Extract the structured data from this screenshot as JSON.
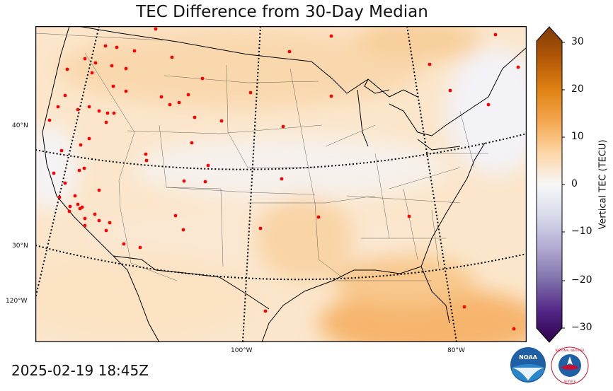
{
  "title": "TEC Difference from 30-Day Median",
  "timestamp": "2025-02-19 18:45Z",
  "colorbar": {
    "label": "Vertical TEC (TECU)",
    "ticks": [
      "30",
      "20",
      "10",
      "0",
      "−10",
      "−20",
      "−30"
    ],
    "range": [
      -30,
      30
    ]
  },
  "graticule": {
    "lat_labels": [
      "40°N",
      "30°N",
      "120°W"
    ],
    "lon_labels": [
      "100°W",
      "80°W"
    ]
  },
  "colors": {
    "positive": "#f4a750",
    "neutral": "#f7f7f7",
    "negative": "#3f0a5e",
    "station": "#ff0000"
  },
  "logos": {
    "noaa": "NOAA",
    "nws": "NATIONAL WEATHER SERVICE"
  }
}
